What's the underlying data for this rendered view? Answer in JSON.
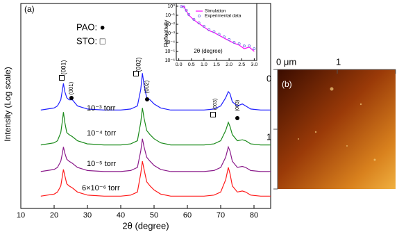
{
  "chart_data": [
    {
      "type": "line",
      "panel_label": "(a)",
      "x_label": "2θ (degree)",
      "y_label": "Intensity (Log scale)",
      "legend_texts": [
        "PAO: ●",
        "STO: □"
      ],
      "annotations": [
        "(001)",
        "(001)",
        "(002)",
        "(002)",
        "(003)",
        "(003)"
      ],
      "xlim": [
        10,
        85
      ],
      "xticks": [
        10,
        20,
        30,
        40,
        50,
        60,
        70,
        80
      ],
      "ylim": [
        0,
        100
      ],
      "x": [
        16,
        18,
        20,
        21,
        22,
        22.5,
        22.8,
        23.2,
        23.8,
        24.5,
        25.5,
        27,
        30,
        35,
        40,
        43,
        45,
        46,
        46.5,
        47,
        47.8,
        48.8,
        50,
        52,
        55,
        60,
        65,
        68,
        70,
        71.5,
        72.3,
        72.8,
        73.5,
        75,
        76.5,
        77.5,
        79,
        82,
        85
      ],
      "series": [
        {
          "name": "10⁻³ torr",
          "color": "#1f1fff",
          "values": [
            48,
            48.5,
            49,
            50,
            53,
            58,
            61,
            57,
            54,
            53,
            53,
            50,
            48.5,
            48,
            48,
            48.5,
            50,
            58,
            66,
            60,
            54,
            53,
            51,
            49,
            48,
            48,
            48,
            48.5,
            50,
            54,
            57,
            56,
            52,
            50,
            51,
            50,
            48.5,
            48,
            48
          ]
        },
        {
          "name": "10⁻⁴ torr",
          "color": "#1a8a1a",
          "values": [
            31,
            31.5,
            32,
            33,
            37,
            43,
            47,
            42,
            37,
            36,
            35,
            33,
            31.5,
            31,
            31,
            31.5,
            33,
            42,
            49,
            44,
            38,
            36,
            34,
            32,
            31,
            31,
            31,
            31.5,
            33,
            38,
            42,
            40,
            36,
            33,
            33.5,
            33,
            31.5,
            31,
            31
          ]
        },
        {
          "name": "10⁻⁵ torr",
          "color": "#8a1a8a",
          "values": [
            18,
            18.5,
            19,
            20,
            23,
            27,
            30,
            27,
            24,
            23,
            22,
            20,
            18.5,
            18,
            18,
            18.5,
            20,
            28,
            34,
            30,
            25,
            23,
            21,
            19,
            18,
            18,
            18,
            18.5,
            20,
            25,
            30,
            28,
            23,
            20,
            20.5,
            20,
            18.5,
            18,
            18
          ]
        },
        {
          "name": "6×10⁻⁶ torr",
          "color": "#ff1a1a",
          "values": [
            6,
            6.5,
            7,
            8,
            11,
            16,
            19,
            16,
            12,
            11,
            10,
            8,
            6.5,
            6,
            6,
            6.5,
            8,
            17,
            23,
            19,
            13,
            11,
            9,
            7,
            6,
            6,
            6,
            6.5,
            8,
            14,
            20,
            17,
            11,
            8,
            8.5,
            8,
            6.5,
            6,
            6
          ]
        }
      ]
    },
    {
      "type": "line",
      "log_y": true,
      "x_label": "2θ (degree)",
      "y_label": "Reflectivity",
      "xlim": [
        -0.1,
        3.1
      ],
      "xticks": [
        {
          "value": 0,
          "label": "0.0"
        },
        {
          "value": 0.5,
          "label": "0.5"
        },
        {
          "value": 1,
          "label": "1.0"
        },
        {
          "value": 1.5,
          "label": "1.5"
        },
        {
          "value": 2,
          "label": "2.0"
        },
        {
          "value": 2.5,
          "label": "2.5"
        },
        {
          "value": 3,
          "label": "3.0"
        }
      ],
      "ylim": [
        1e-06,
        2
      ],
      "yticks": [
        {
          "value": 1,
          "label": "10⁰"
        },
        {
          "value": 0.1,
          "label": "10⁻¹"
        },
        {
          "value": 0.01,
          "label": "10⁻²"
        },
        {
          "value": 0.001,
          "label": "10⁻³"
        },
        {
          "value": 0.0001,
          "label": "10⁻⁴"
        },
        {
          "value": 1e-05,
          "label": "10⁻⁵"
        },
        {
          "value": 1e-06,
          "label": "10⁻⁶"
        }
      ],
      "x": [
        0.1,
        0.2,
        0.3,
        0.4,
        0.6,
        0.8,
        1.0,
        1.2,
        1.4,
        1.6,
        1.8,
        2.0,
        2.2,
        2.4,
        2.6,
        2.8,
        3.0
      ],
      "series": [
        {
          "name": "Simulation",
          "color": "#ff00ff",
          "style": "line",
          "values": [
            1,
            0.9,
            0.3,
            0.1,
            0.03,
            0.012,
            0.005,
            0.002,
            0.0012,
            0.0006,
            0.0003,
            0.00015,
            8e-05,
            5e-05,
            2e-05,
            3e-05,
            1e-05
          ]
        },
        {
          "name": "Experimental data",
          "color": "#7070e0",
          "style": "markers",
          "values": [
            0.95,
            0.85,
            0.35,
            0.12,
            0.035,
            0.014,
            0.006,
            0.0025,
            0.0015,
            0.0008,
            0.0004,
            0.0002,
            0.0001,
            7e-05,
            4e-05,
            4e-05,
            2e-05
          ]
        }
      ]
    }
  ],
  "image_panel": {
    "label": "(b)",
    "top_ticks": [
      "0 μm",
      "1"
    ],
    "left_ticks": [
      "0",
      "1"
    ]
  }
}
